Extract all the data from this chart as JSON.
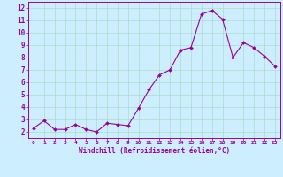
{
  "x": [
    0,
    1,
    2,
    3,
    4,
    5,
    6,
    7,
    8,
    9,
    10,
    11,
    12,
    13,
    14,
    15,
    16,
    17,
    18,
    19,
    20,
    21,
    22,
    23
  ],
  "y": [
    2.3,
    2.9,
    2.2,
    2.2,
    2.6,
    2.2,
    2.0,
    2.7,
    2.6,
    2.5,
    3.9,
    5.4,
    6.6,
    7.0,
    8.6,
    8.8,
    11.5,
    11.8,
    11.1,
    8.0,
    9.2,
    8.8,
    8.1,
    7.3
  ],
  "xlabel": "Windchill (Refroidissement éolien,°C)",
  "ylim": [
    1.5,
    12.5
  ],
  "xlim": [
    -0.5,
    23.5
  ],
  "yticks": [
    2,
    3,
    4,
    5,
    6,
    7,
    8,
    9,
    10,
    11,
    12
  ],
  "xticks": [
    0,
    1,
    2,
    3,
    4,
    5,
    6,
    7,
    8,
    9,
    10,
    11,
    12,
    13,
    14,
    15,
    16,
    17,
    18,
    19,
    20,
    21,
    22,
    23
  ],
  "line_color": "#990099",
  "marker_color": "#990099",
  "bg_color": "#cceeff",
  "grid_color": "#aaddcc",
  "tick_label_color": "#990099",
  "xlabel_color": "#990099"
}
